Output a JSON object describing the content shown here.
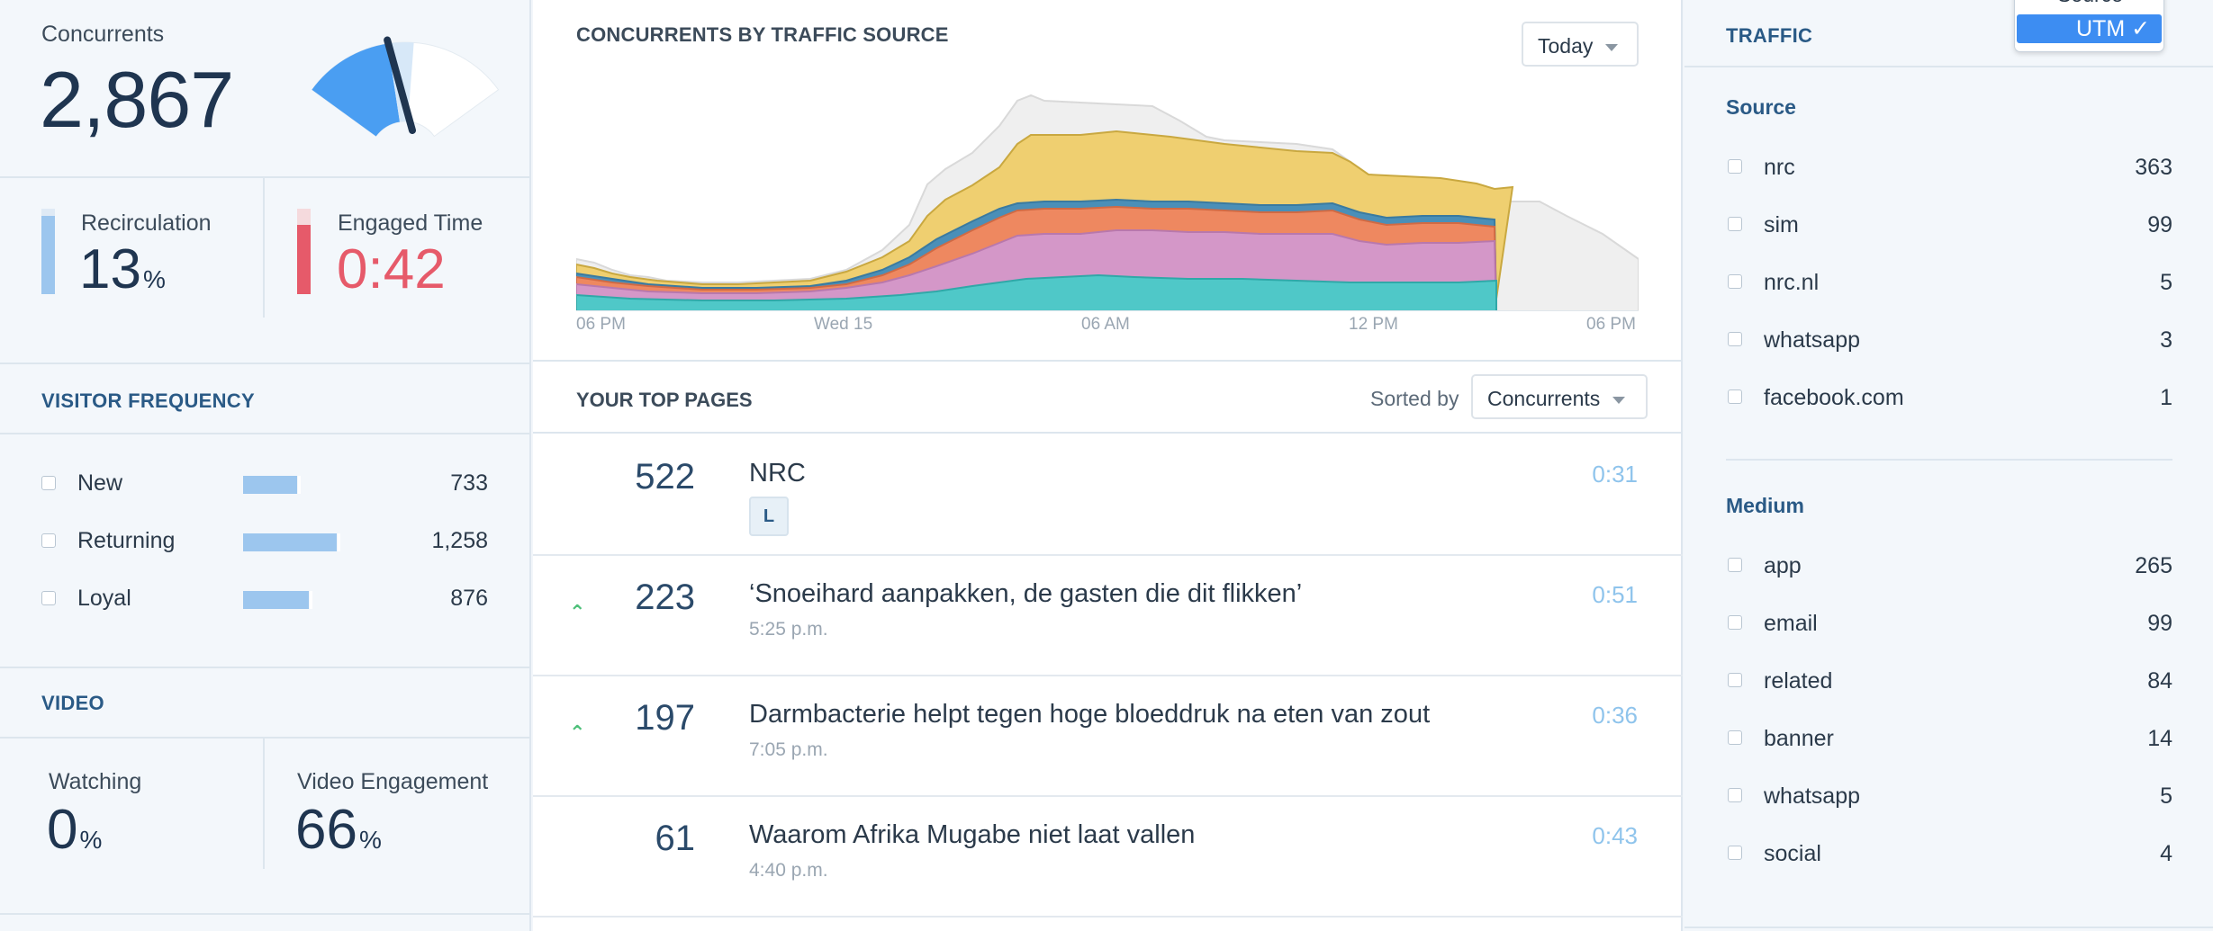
{
  "concurrents": {
    "label": "Concurrents",
    "value": "2,867",
    "gauge_fraction": 0.42
  },
  "recirculation": {
    "label": "Recirculation",
    "value": "13",
    "unit": "%",
    "color": "#9cc6ee"
  },
  "engaged_time": {
    "label": "Engaged Time",
    "value": "0:42",
    "color": "#e65a6a"
  },
  "visitor_frequency": {
    "title": "VISITOR FREQUENCY",
    "items": [
      {
        "label": "New",
        "value": "733",
        "share": 0.58
      },
      {
        "label": "Returning",
        "value": "1,258",
        "share": 1.0
      },
      {
        "label": "Loyal",
        "value": "876",
        "share": 0.7
      }
    ]
  },
  "video": {
    "title": "VIDEO",
    "watching": {
      "label": "Watching",
      "value": "0",
      "unit": "%"
    },
    "engagement": {
      "label": "Video Engagement",
      "value": "66",
      "unit": "%"
    }
  },
  "chart_data": {
    "type": "area",
    "title": "CONCURRENTS BY TRAFFIC SOURCE",
    "range_selector": "Today",
    "x_ticks": [
      "06 PM",
      "Wed 15",
      "06 AM",
      "12 PM",
      "06 PM"
    ],
    "series": [],
    "colors": [
      "#4fc8c8",
      "#d497c8",
      "#ee8860",
      "#4a8fb8",
      "#efcf70",
      "#eeeeee"
    ]
  },
  "top_pages": {
    "title": "YOUR TOP PAGES",
    "sorted_by_label": "Sorted by",
    "sort_value": "Concurrents",
    "rows": [
      {
        "count": "522",
        "title": "NRC",
        "sub": "",
        "tag": "L",
        "time": "0:31",
        "trend": ""
      },
      {
        "count": "223",
        "title": "‘Snoeihard aanpakken, de gasten die dit flikken’",
        "sub": "5:25 p.m.",
        "tag": "",
        "time": "0:51",
        "trend": "up"
      },
      {
        "count": "197",
        "title": "Darmbacterie helpt tegen hoge bloeddruk na eten van zout",
        "sub": "7:05 p.m.",
        "tag": "",
        "time": "0:36",
        "trend": "up"
      },
      {
        "count": "61",
        "title": "Waarom Afrika Mugabe niet laat vallen",
        "sub": "4:40 p.m.",
        "tag": "",
        "time": "0:43",
        "trend": ""
      }
    ]
  },
  "traffic": {
    "title": "TRAFFIC",
    "popup": {
      "option_source": "Source",
      "option_utm": "UTM",
      "check": "✓"
    },
    "source": {
      "title": "Source",
      "items": [
        {
          "label": "nrc",
          "value": "363"
        },
        {
          "label": "sim",
          "value": "99"
        },
        {
          "label": "nrc.nl",
          "value": "5"
        },
        {
          "label": "whatsapp",
          "value": "3"
        },
        {
          "label": "facebook.com",
          "value": "1"
        }
      ]
    },
    "medium": {
      "title": "Medium",
      "items": [
        {
          "label": "app",
          "value": "265"
        },
        {
          "label": "email",
          "value": "99"
        },
        {
          "label": "related",
          "value": "84"
        },
        {
          "label": "banner",
          "value": "14"
        },
        {
          "label": "whatsapp",
          "value": "5"
        },
        {
          "label": "social",
          "value": "4"
        }
      ]
    }
  }
}
